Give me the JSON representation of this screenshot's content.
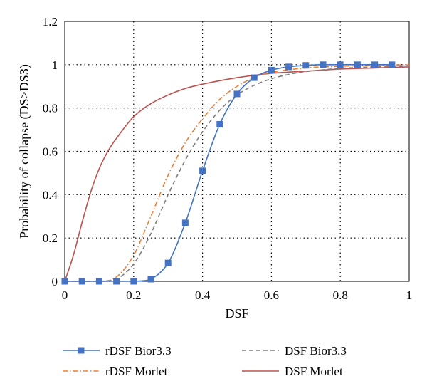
{
  "chart_data": {
    "type": "line",
    "title": "",
    "xlabel": "DSF",
    "ylabel": "Probability of collapse (DS>DS3)",
    "xlim": [
      0,
      1
    ],
    "ylim": [
      0,
      1.2
    ],
    "x_ticks": [
      "0",
      "0.2",
      "0.4",
      "0.6",
      "0.8",
      "1"
    ],
    "y_ticks": [
      "0",
      "0.2",
      "0.4",
      "0.6",
      "0.8",
      "1",
      "1.2"
    ],
    "x_tick_values": [
      0,
      0.2,
      0.4,
      0.6,
      0.8,
      1
    ],
    "y_tick_values": [
      0,
      0.2,
      0.4,
      0.6,
      0.8,
      1,
      1.2
    ],
    "grid": "dotted",
    "legend_position": "bottom",
    "series": [
      {
        "name": "rDSF Bior3.3",
        "color": "#4472c4",
        "style": "solid-with-square-markers",
        "x": [
          0,
          0.05,
          0.1,
          0.15,
          0.2,
          0.25,
          0.3,
          0.35,
          0.4,
          0.45,
          0.5,
          0.55,
          0.6,
          0.65,
          0.7,
          0.75,
          0.8,
          0.85,
          0.9,
          0.95
        ],
        "y": [
          0,
          0,
          0,
          0,
          0,
          0.01,
          0.085,
          0.27,
          0.51,
          0.725,
          0.865,
          0.94,
          0.975,
          0.99,
          0.997,
          1.0,
          1.0,
          1.0,
          1.0,
          1.0
        ]
      },
      {
        "name": "DSF Bior3.3",
        "color": "#7f7f7f",
        "style": "dashed",
        "x": [
          0,
          0.1,
          0.15,
          0.2,
          0.25,
          0.3,
          0.35,
          0.4,
          0.45,
          0.5,
          0.55,
          0.6,
          0.65,
          0.7,
          0.8,
          0.9,
          1.0
        ],
        "y": [
          0,
          0,
          0.01,
          0.08,
          0.22,
          0.4,
          0.56,
          0.69,
          0.79,
          0.86,
          0.905,
          0.935,
          0.955,
          0.968,
          0.983,
          0.99,
          0.995
        ]
      },
      {
        "name": "rDSF Morlet",
        "color": "#ed7d31",
        "style": "dash-dot",
        "x": [
          0,
          0.1,
          0.15,
          0.2,
          0.25,
          0.3,
          0.35,
          0.4,
          0.45,
          0.5,
          0.55,
          0.6,
          0.7,
          0.8,
          0.9,
          1.0
        ],
        "y": [
          0,
          0,
          0.02,
          0.12,
          0.3,
          0.49,
          0.64,
          0.75,
          0.84,
          0.9,
          0.94,
          0.965,
          0.985,
          0.993,
          0.997,
          0.999
        ]
      },
      {
        "name": "DSF Morlet",
        "color": "#c0504d",
        "style": "solid",
        "x": [
          0,
          0.025,
          0.05,
          0.075,
          0.1,
          0.125,
          0.15,
          0.2,
          0.25,
          0.3,
          0.35,
          0.4,
          0.5,
          0.6,
          0.7,
          0.8,
          0.9,
          1.0
        ],
        "y": [
          0,
          0.12,
          0.27,
          0.41,
          0.52,
          0.6,
          0.66,
          0.76,
          0.82,
          0.86,
          0.89,
          0.91,
          0.94,
          0.96,
          0.97,
          0.98,
          0.985,
          0.99
        ]
      }
    ]
  }
}
